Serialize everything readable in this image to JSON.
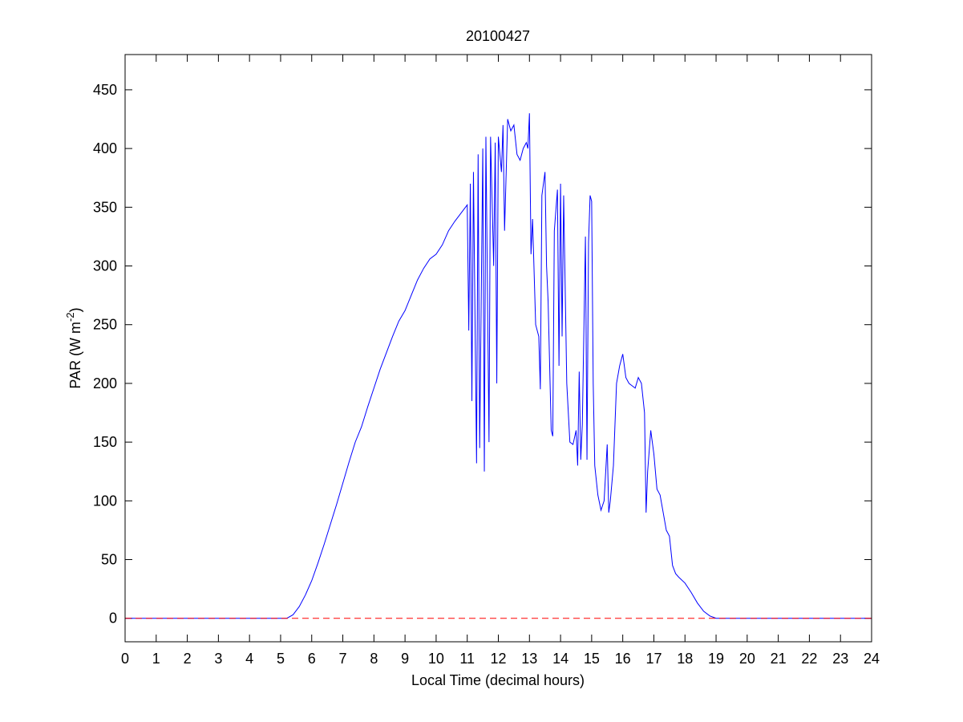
{
  "chart_data": {
    "type": "line",
    "title": "20100427",
    "xlabel": "Local Time (decimal hours)",
    "ylabel": [
      "PAR (W m",
      "-2",
      ")"
    ],
    "xlim": [
      0,
      24
    ],
    "xticks": [
      0,
      1,
      2,
      3,
      4,
      5,
      6,
      7,
      8,
      9,
      10,
      11,
      12,
      13,
      14,
      15,
      16,
      17,
      18,
      19,
      20,
      21,
      22,
      23,
      24
    ],
    "ylim": [
      -20,
      480
    ],
    "yticks": [
      0,
      50,
      100,
      150,
      200,
      250,
      300,
      350,
      400,
      450
    ],
    "reference_y": 0,
    "reference_color": "#ff0000",
    "series": [
      {
        "color": "#0000ff",
        "x": [
          0,
          5.0,
          5.2,
          5.4,
          5.6,
          5.8,
          6.0,
          6.2,
          6.4,
          6.6,
          6.8,
          7.0,
          7.2,
          7.4,
          7.6,
          7.8,
          8.0,
          8.2,
          8.4,
          8.6,
          8.8,
          9.0,
          9.2,
          9.4,
          9.6,
          9.8,
          10.0,
          10.2,
          10.4,
          10.6,
          10.8,
          11.0,
          11.05,
          11.1,
          11.15,
          11.2,
          11.3,
          11.35,
          11.4,
          11.5,
          11.55,
          11.6,
          11.7,
          11.75,
          11.85,
          11.9,
          11.95,
          12.0,
          12.1,
          12.15,
          12.2,
          12.3,
          12.4,
          12.5,
          12.6,
          12.7,
          12.8,
          12.9,
          12.95,
          13.0,
          13.05,
          13.1,
          13.2,
          13.3,
          13.35,
          13.4,
          13.5,
          13.55,
          13.6,
          13.7,
          13.75,
          13.8,
          13.9,
          13.95,
          14.0,
          14.05,
          14.1,
          14.2,
          14.3,
          14.4,
          14.5,
          14.55,
          14.6,
          14.65,
          14.7,
          14.8,
          14.85,
          14.9,
          14.95,
          15.0,
          15.05,
          15.1,
          15.2,
          15.3,
          15.4,
          15.5,
          15.55,
          15.6,
          15.7,
          15.8,
          15.9,
          16.0,
          16.1,
          16.2,
          16.3,
          16.4,
          16.5,
          16.6,
          16.7,
          16.75,
          16.8,
          16.9,
          17.0,
          17.1,
          17.2,
          17.3,
          17.4,
          17.5,
          17.6,
          17.7,
          17.8,
          18.0,
          18.2,
          18.4,
          18.6,
          18.8,
          19.0,
          24
        ],
        "values": [
          0,
          0,
          0,
          3,
          10,
          20,
          32,
          47,
          63,
          80,
          97,
          115,
          133,
          150,
          163,
          180,
          196,
          212,
          226,
          240,
          253,
          262,
          275,
          288,
          298,
          306,
          310,
          318,
          330,
          338,
          345,
          352,
          245,
          370,
          185,
          380,
          132,
          395,
          145,
          400,
          125,
          410,
          150,
          410,
          300,
          405,
          200,
          410,
          380,
          420,
          330,
          425,
          415,
          420,
          395,
          390,
          400,
          405,
          400,
          430,
          310,
          340,
          250,
          240,
          195,
          360,
          380,
          300,
          270,
          160,
          155,
          330,
          365,
          215,
          370,
          240,
          360,
          200,
          150,
          148,
          160,
          130,
          210,
          135,
          165,
          325,
          135,
          320,
          360,
          355,
          200,
          130,
          105,
          92,
          100,
          148,
          90,
          100,
          130,
          200,
          215,
          225,
          205,
          200,
          198,
          196,
          205,
          200,
          175,
          90,
          125,
          160,
          140,
          110,
          105,
          90,
          75,
          70,
          45,
          38,
          35,
          30,
          22,
          13,
          6,
          2,
          0,
          0
        ]
      }
    ]
  }
}
